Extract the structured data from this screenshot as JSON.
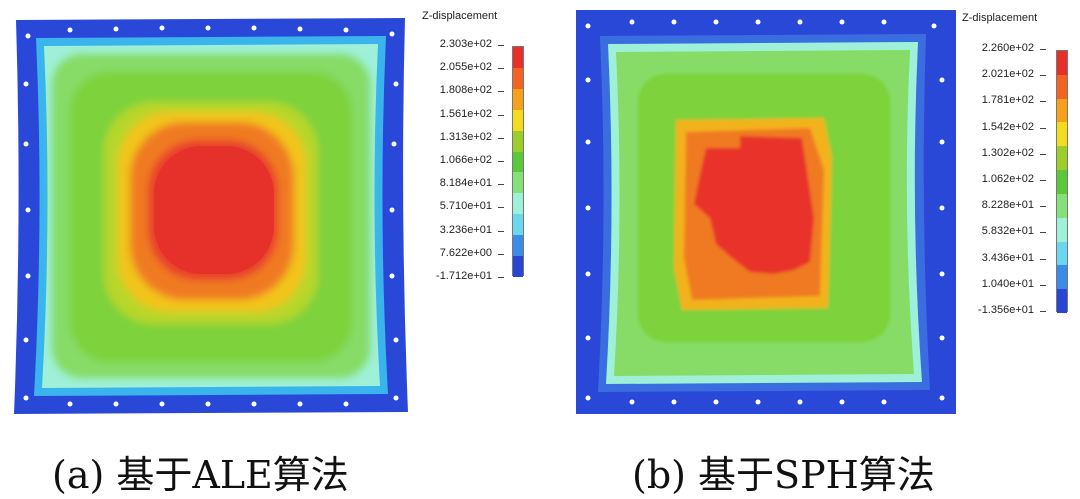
{
  "panels": [
    {
      "id": "a",
      "legend_title": "Z-displacement",
      "legend_values": [
        "2.303e+02",
        "2.055e+02",
        "1.808e+02",
        "1.561e+02",
        "1.313e+02",
        "1.066e+02",
        "8.184e+01",
        "5.710e+01",
        "3.236e+01",
        "7.622e+00",
        "-1.712e+01"
      ],
      "caption": "(a)  基于ALE算法"
    },
    {
      "id": "b",
      "legend_title": "Z-displacement",
      "legend_values": [
        "2.260e+02",
        "2.021e+02",
        "1.781e+02",
        "1.542e+02",
        "1.302e+02",
        "1.062e+02",
        "8.228e+01",
        "5.832e+01",
        "3.436e+01",
        "1.040e+01",
        "-1.356e+01"
      ],
      "caption": "(b)  基于SPH算法"
    }
  ],
  "colors": {
    "scale": [
      "#e8302a",
      "#f26222",
      "#f6a01c",
      "#f2dc1e",
      "#9ccd2a",
      "#5ac83a",
      "#86e07a",
      "#9ef0d8",
      "#6cd6ee",
      "#3a8ce8",
      "#2a44d6"
    ],
    "plate_green": "#7ed23a",
    "plate_border_blue": "#2a48d8"
  }
}
